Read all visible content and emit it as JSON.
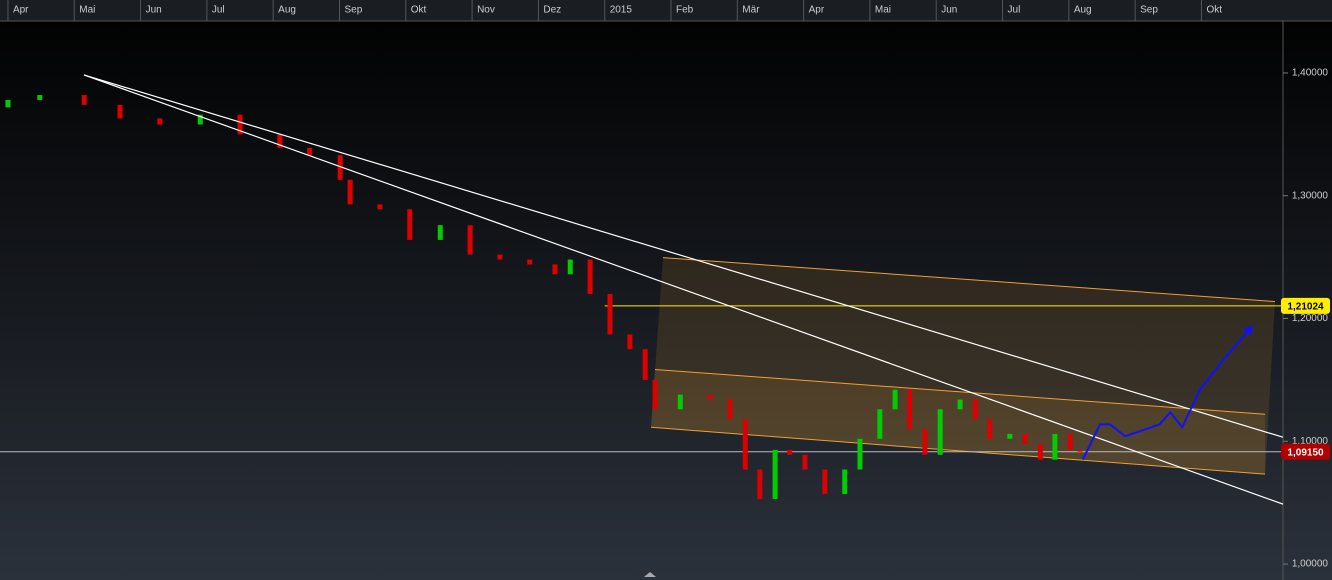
{
  "chart_data": {
    "type": "candlestick",
    "up_color": "#00cc00",
    "down_color": "#dd0000",
    "x": [
      0,
      0.48,
      1.15,
      1.69,
      2.29,
      2.9,
      3.5,
      4.1,
      4.55,
      5.01,
      5.16,
      5.61,
      6.06,
      6.52,
      6.97,
      7.42,
      7.87,
      8.25,
      8.48,
      8.78,
      9.08,
      9.38,
      9.61,
      9.76,
      10.14,
      10.59,
      10.89,
      11.12,
      11.34,
      11.57,
      11.79,
      12.02,
      12.32,
      12.62,
      12.85,
      13.15,
      13.38,
      13.6,
      13.83,
      14.06,
      14.36,
      14.59,
      14.81,
      15.11,
      15.34,
      15.57,
      15.79,
      16.02,
      16.17
    ],
    "open": [
      1.372,
      1.378,
      1.382,
      1.374,
      1.363,
      1.358,
      1.366,
      1.35,
      1.339,
      1.333,
      1.313,
      1.293,
      1.289,
      1.264,
      1.276,
      1.252,
      1.248,
      1.244,
      1.236,
      1.248,
      1.22,
      1.187,
      1.175,
      1.15,
      1.126,
      1.138,
      1.134,
      1.118,
      1.077,
      1.053,
      1.093,
      1.089,
      1.077,
      1.057,
      1.077,
      1.102,
      1.126,
      1.142,
      1.11,
      1.089,
      1.126,
      1.134,
      1.118,
      1.102,
      1.106,
      1.098,
      1.085,
      1.106,
      1.093
    ],
    "close": [
      1.378,
      1.382,
      1.374,
      1.363,
      1.358,
      1.366,
      1.35,
      1.339,
      1.333,
      1.313,
      1.293,
      1.289,
      1.264,
      1.276,
      1.252,
      1.248,
      1.244,
      1.236,
      1.248,
      1.22,
      1.187,
      1.175,
      1.15,
      1.126,
      1.138,
      1.134,
      1.118,
      1.077,
      1.053,
      1.093,
      1.089,
      1.077,
      1.057,
      1.077,
      1.102,
      1.126,
      1.142,
      1.11,
      1.089,
      1.126,
      1.134,
      1.118,
      1.102,
      1.106,
      1.098,
      1.085,
      1.106,
      1.093,
      1.0915
    ],
    "xlim": [
      -0.12,
      19.23
    ],
    "ylim": [
      0.987,
      1.4415
    ],
    "xticks": [
      {
        "value": 0,
        "label": "Apr"
      },
      {
        "value": 1,
        "label": "Mai"
      },
      {
        "value": 2,
        "label": "Jun"
      },
      {
        "value": 3,
        "label": "Jul"
      },
      {
        "value": 4,
        "label": "Aug"
      },
      {
        "value": 5,
        "label": "Sep"
      },
      {
        "value": 6,
        "label": "Okt"
      },
      {
        "value": 7,
        "label": "Nov"
      },
      {
        "value": 8,
        "label": "Dez"
      },
      {
        "value": 9,
        "label": "2015"
      },
      {
        "value": 10,
        "label": "Feb"
      },
      {
        "value": 11,
        "label": "Mär"
      },
      {
        "value": 12,
        "label": "Apr"
      },
      {
        "value": 13,
        "label": "Mai"
      },
      {
        "value": 14,
        "label": "Jun"
      },
      {
        "value": 15,
        "label": "Jul"
      },
      {
        "value": 16,
        "label": "Aug"
      },
      {
        "value": 17,
        "label": "Sep"
      },
      {
        "value": 18,
        "label": "Okt"
      }
    ],
    "yticks": [
      {
        "value": 1.0,
        "label": "1,00000"
      },
      {
        "value": 1.1,
        "label": "1,10000"
      },
      {
        "value": 1.2,
        "label": "1,20000"
      },
      {
        "value": 1.3,
        "label": "1,30000"
      },
      {
        "value": 1.4,
        "label": "1,40000"
      }
    ],
    "zones": [
      {
        "x": [
          9.879,
          19.11,
          18.96,
          9.698
        ],
        "y": [
          1.2496,
          1.2138,
          1.0732,
          1.1114
        ],
        "color": "#f0a030"
      },
      {
        "x": [
          9.759,
          18.96,
          18.96,
          9.698
        ],
        "y": [
          1.1585,
          1.122,
          1.0732,
          1.1114
        ],
        "color": "#f0a030"
      }
    ],
    "channel_lines": [
      {
        "x": [
          9.879,
          19.11
        ],
        "y": [
          1.2496,
          1.2138
        ],
        "color": "#f0a030"
      },
      {
        "x": [
          9.759,
          18.96
        ],
        "y": [
          1.1585,
          1.122
        ],
        "color": "#f0a030"
      },
      {
        "x": [
          9.698,
          18.96
        ],
        "y": [
          1.1114,
          1.0732
        ],
        "color": "#f0a030"
      }
    ],
    "trend_lines": [
      {
        "x": [
          1.146,
          19.23
        ],
        "y": [
          1.3984,
          1.1033
        ],
        "color": "#ffffff"
      },
      {
        "x": [
          1.146,
          19.23
        ],
        "y": [
          1.3984,
          1.0488
        ],
        "color": "#ffffff"
      }
    ],
    "projection": {
      "x": [
        16.21,
        16.47,
        16.62,
        16.85,
        17.07,
        17.37,
        17.53,
        17.71,
        17.98,
        18.36,
        18.76
      ],
      "y": [
        1.085,
        1.1138,
        1.1138,
        1.1041,
        1.1081,
        1.1138,
        1.1236,
        1.1114,
        1.1423,
        1.1683,
        1.1935
      ],
      "color": "#1010ff"
    },
    "levels": [
      {
        "value": 1.21024,
        "label": "1,21024",
        "x": [
          9.0,
          19.23
        ],
        "color": "#ffee00",
        "text_color": "#000000"
      },
      {
        "value": 1.0915,
        "label": "1,09150",
        "x": [
          -0.12,
          19.23
        ],
        "color": "#b00000",
        "text_color": "#ffffff"
      }
    ]
  }
}
